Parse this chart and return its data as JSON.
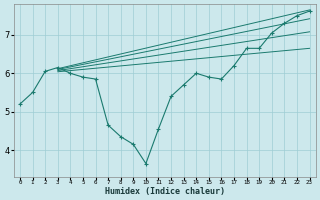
{
  "xlabel": "Humidex (Indice chaleur)",
  "ylabel": "",
  "bg_color": "#cce8ec",
  "grid_color": "#9fcdd4",
  "line_color": "#1a7a6e",
  "xlim": [
    -0.5,
    23.5
  ],
  "ylim": [
    3.3,
    7.8
  ],
  "xticks": [
    0,
    1,
    2,
    3,
    4,
    5,
    6,
    7,
    8,
    9,
    10,
    11,
    12,
    13,
    14,
    15,
    16,
    17,
    18,
    19,
    20,
    21,
    22,
    23
  ],
  "yticks": [
    4,
    5,
    6,
    7
  ],
  "main_x": [
    0,
    1,
    2,
    3,
    4,
    5,
    6,
    7,
    8,
    9,
    10,
    11,
    12,
    13,
    14,
    15,
    16,
    17,
    18,
    19,
    20,
    21,
    22,
    23
  ],
  "main_y": [
    5.2,
    5.5,
    6.05,
    6.15,
    6.0,
    5.9,
    5.85,
    4.65,
    4.35,
    4.15,
    3.65,
    4.55,
    5.4,
    5.7,
    6.0,
    5.9,
    5.85,
    6.2,
    6.65,
    6.65,
    7.05,
    7.3,
    7.5,
    7.62
  ],
  "fan_lines": [
    {
      "x": [
        3,
        23
      ],
      "y": [
        6.12,
        7.65
      ]
    },
    {
      "x": [
        3,
        23
      ],
      "y": [
        6.1,
        7.42
      ]
    },
    {
      "x": [
        3,
        23
      ],
      "y": [
        6.07,
        7.08
      ]
    },
    {
      "x": [
        3,
        23
      ],
      "y": [
        6.04,
        6.65
      ]
    }
  ]
}
